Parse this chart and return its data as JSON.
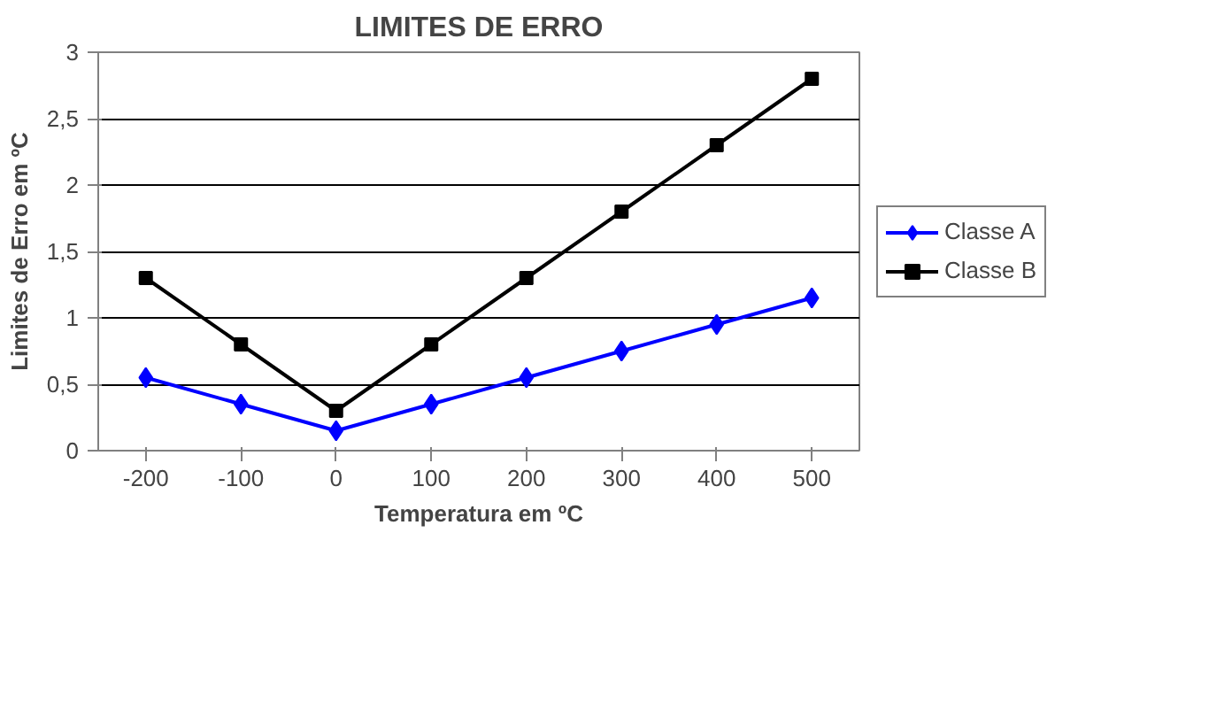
{
  "chart_data": {
    "type": "line",
    "title": "LIMITES DE ERRO",
    "xlabel": "Temperatura em ºC",
    "ylabel": "Limites de Erro em ºC",
    "categories": [
      "-200",
      "-100",
      "0",
      "100",
      "200",
      "300",
      "400",
      "500"
    ],
    "series": [
      {
        "name": "Classe A",
        "color": "#0000ff",
        "marker": "diamond",
        "values": [
          0.55,
          0.35,
          0.15,
          0.35,
          0.55,
          0.75,
          0.95,
          1.15
        ]
      },
      {
        "name": "Classe B",
        "color": "#000000",
        "marker": "square",
        "values": [
          1.3,
          0.8,
          0.3,
          0.8,
          1.3,
          1.8,
          2.3,
          2.8
        ]
      }
    ],
    "ylim": [
      0,
      3
    ],
    "yticks": [
      0,
      {
        "value": 0.5,
        "label": "0,5"
      },
      1,
      {
        "value": 1.5,
        "label": "1,5"
      },
      2,
      {
        "value": 2.5,
        "label": "2,5"
      },
      3
    ],
    "grid": "y",
    "legend": "right",
    "line_style": "solid"
  }
}
